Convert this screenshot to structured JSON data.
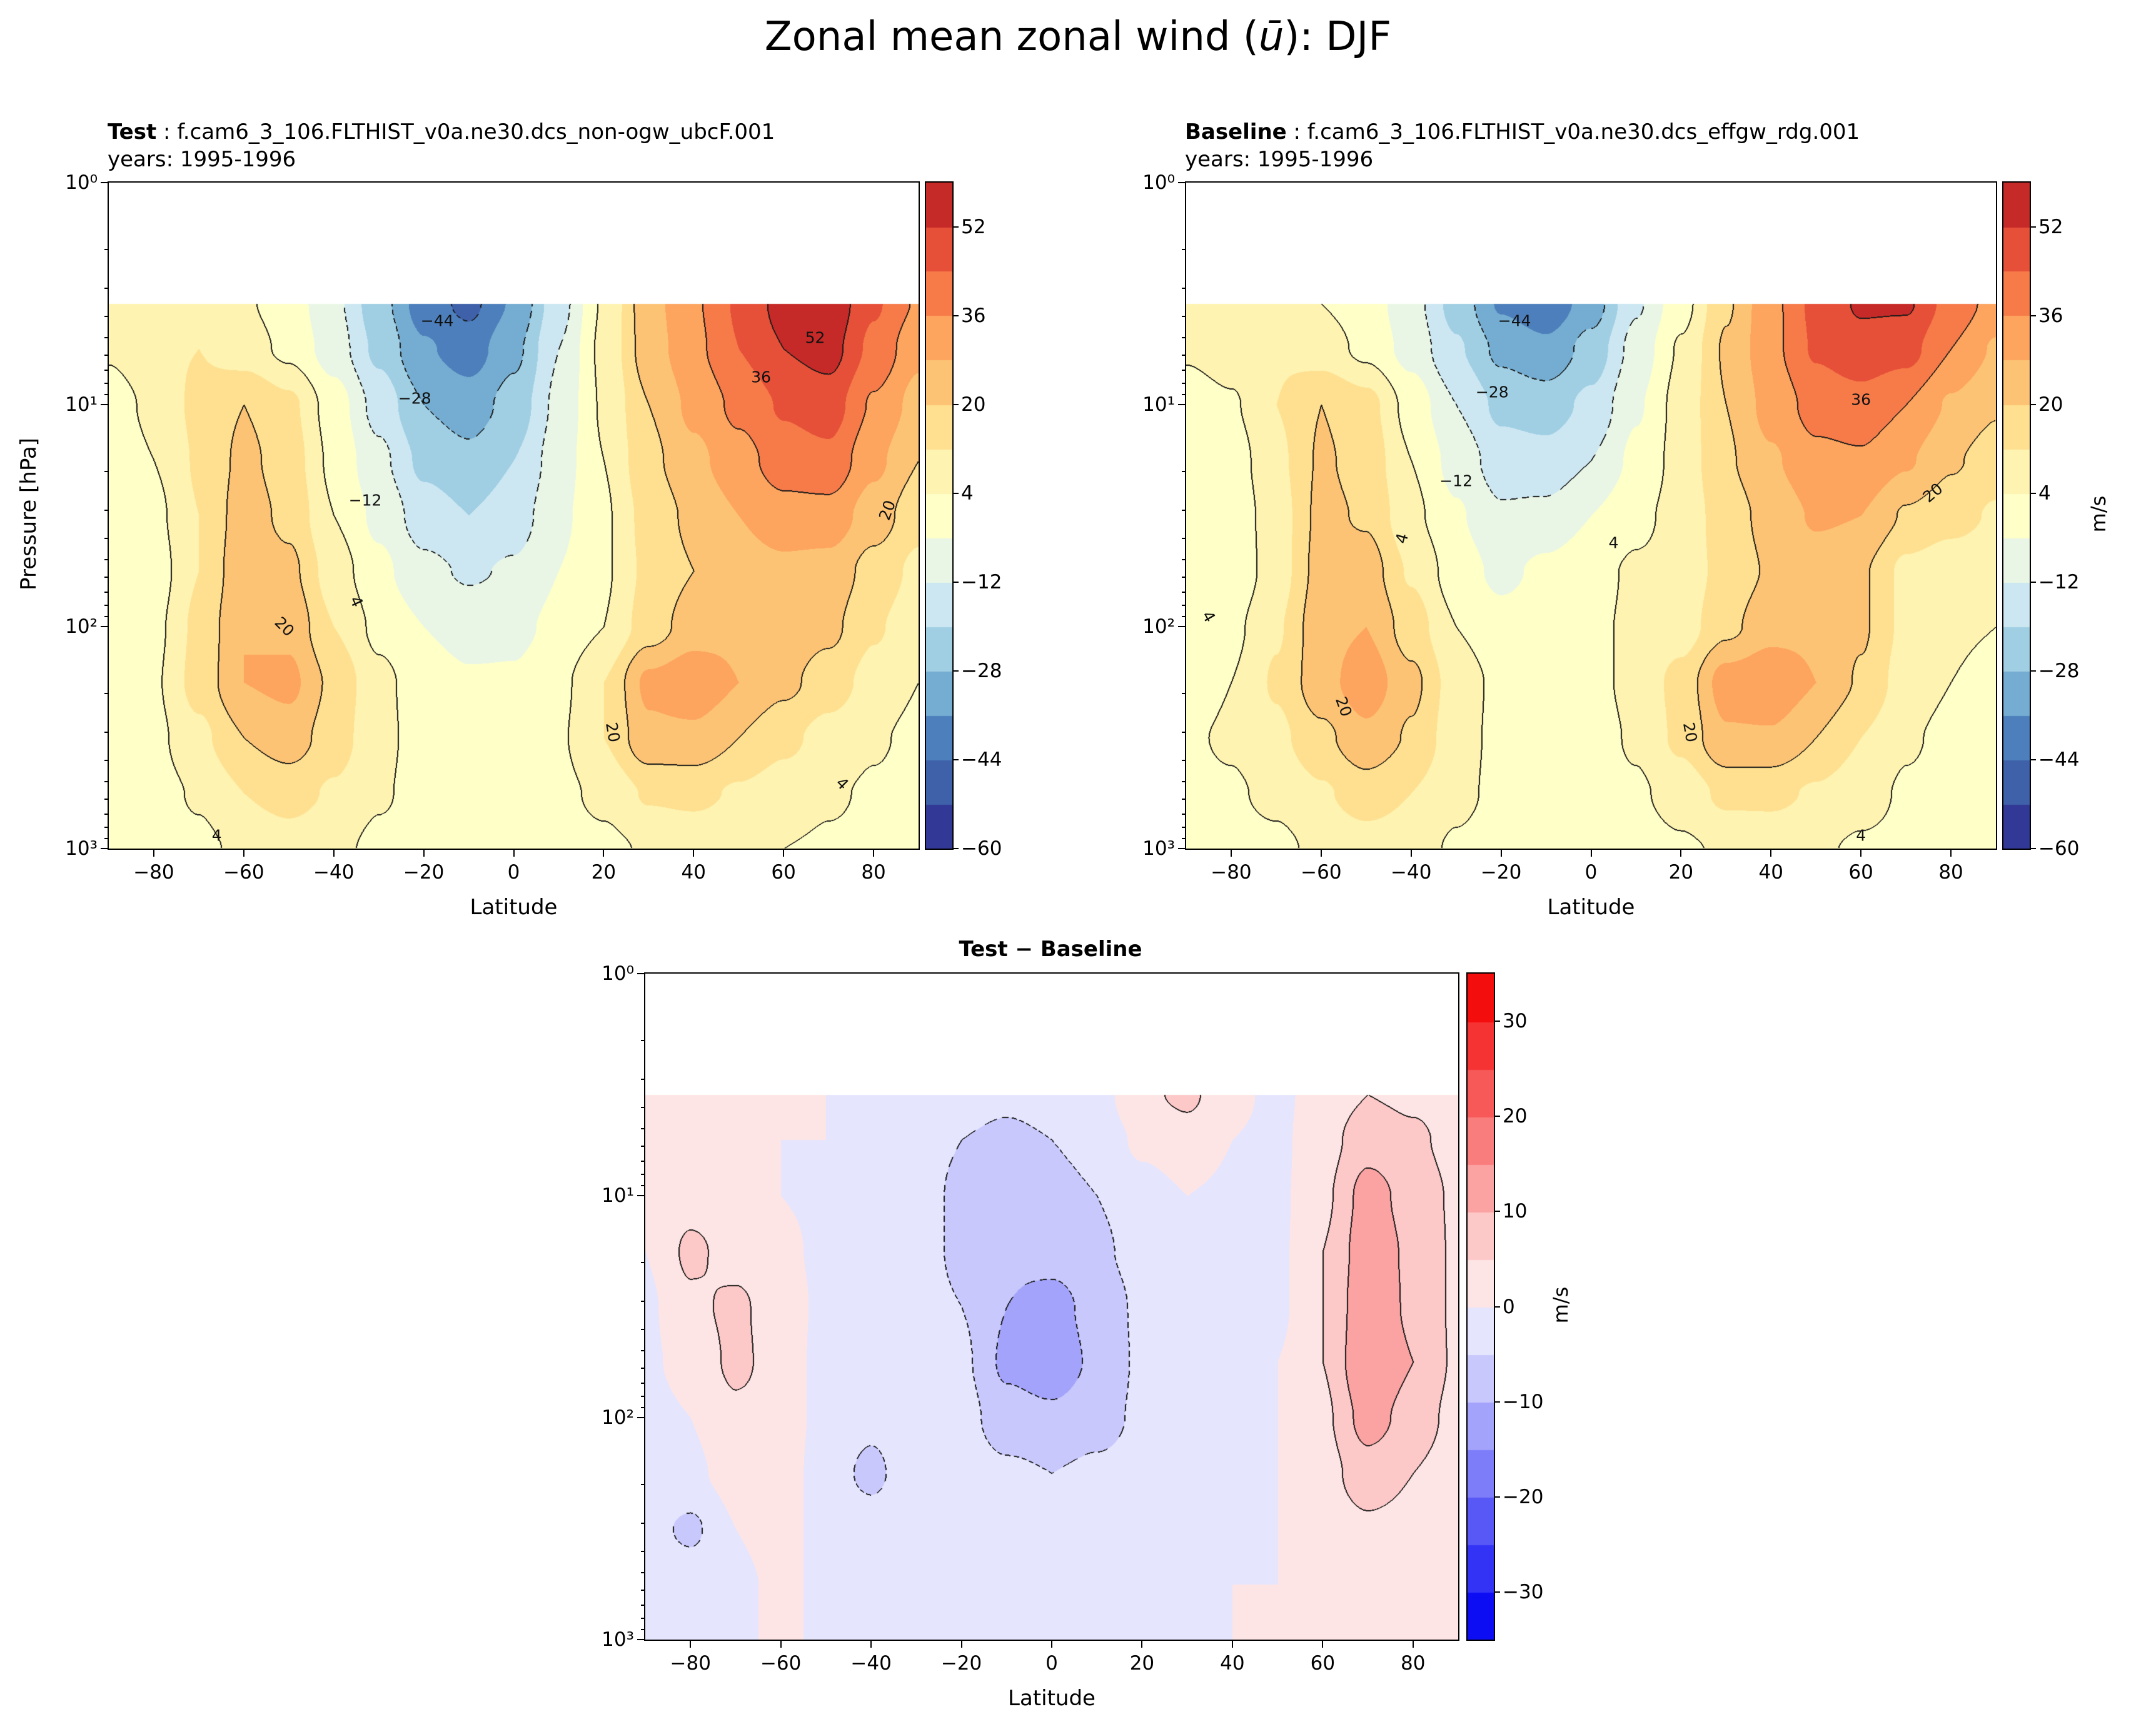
{
  "suptitle": {
    "pre": "Zonal mean zonal wind (",
    "math": "ū",
    "post": "): DJF"
  },
  "panels": {
    "test": {
      "label": "Test",
      "rest": " : f.cam6_3_106.FLTHIST_v0a.ne30.dcs_non-ogw_ubcF.001",
      "years": "years: 1995-1996"
    },
    "baseline": {
      "label": "Baseline",
      "rest": " : f.cam6_3_106.FLTHIST_v0a.ne30.dcs_effgw_rdg.001",
      "years": "years: 1995-1996"
    },
    "diff": {
      "title": "Test − Baseline"
    }
  },
  "axes": {
    "xlabel": "Latitude",
    "ylabel": "Pressure [hPa]",
    "units_label": "m/s",
    "xtick_values": [
      -80,
      -60,
      -40,
      -20,
      0,
      20,
      40,
      60,
      80
    ],
    "xtick_labels": [
      "−80",
      "−60",
      "−40",
      "−20",
      "0",
      "20",
      "40",
      "60",
      "80"
    ],
    "ytick_labels": [
      "10⁰",
      "10¹",
      "10²",
      "10³"
    ]
  },
  "colorbars": {
    "wind": {
      "min": -60,
      "max": 60,
      "step": 8,
      "tick_values": [
        52,
        36,
        20,
        4,
        -12,
        -28,
        -44,
        -60
      ],
      "tick_labels": [
        "52",
        "36",
        "20",
        "4",
        "−12",
        "−28",
        "−44",
        "−60"
      ],
      "palette": [
        "#323895",
        "#3f61aa",
        "#4d7fbc",
        "#74add1",
        "#a0cfe4",
        "#cce7f2",
        "#e9f6e5",
        "#ffffc8",
        "#fef3b0",
        "#fee090",
        "#fdc374",
        "#fda55f",
        "#f67b49",
        "#e65038",
        "#c62a28"
      ]
    },
    "diff": {
      "min": -35,
      "max": 35,
      "step": 5,
      "tick_values": [
        30,
        20,
        10,
        0,
        -10,
        -20,
        -30
      ],
      "tick_labels": [
        "30",
        "20",
        "10",
        "0",
        "−10",
        "−20",
        "−30"
      ],
      "palette": [
        "#0d0df4",
        "#3333f6",
        "#5858f7",
        "#7d7df9",
        "#a3a3fb",
        "#c8c8fd",
        "#e5e5fe",
        "#fee5e5",
        "#fdc8c8",
        "#fba3a3",
        "#f97d7d",
        "#f75858",
        "#f63333",
        "#f40d0d"
      ]
    }
  },
  "contour_lines": {
    "wind_levels": [
      -44,
      -28,
      -12,
      4,
      20,
      36,
      52
    ],
    "diff_levels": [
      -10,
      -5,
      5,
      10
    ]
  },
  "contour_labels": {
    "test": [
      {
        "lat": -17,
        "p": 4.2,
        "text": "−44",
        "rot": 0
      },
      {
        "lat": -22,
        "p": 9.4,
        "text": "−28",
        "rot": 0
      },
      {
        "lat": -33,
        "p": 27,
        "text": "−12",
        "rot": 0
      },
      {
        "lat": 67,
        "p": 5,
        "text": "52",
        "rot": 0
      },
      {
        "lat": 55,
        "p": 7.5,
        "text": "36",
        "rot": 0
      },
      {
        "lat": 83,
        "p": 30,
        "text": "20",
        "rot": -70
      },
      {
        "lat": -35,
        "p": 77,
        "text": "4",
        "rot": 65
      },
      {
        "lat": -51,
        "p": 100,
        "text": "20",
        "rot": 45
      },
      {
        "lat": 22,
        "p": 300,
        "text": "20",
        "rot": 80
      },
      {
        "lat": 73,
        "p": 510,
        "text": "4",
        "rot": 45
      },
      {
        "lat": -66,
        "p": 870,
        "text": "4",
        "rot": 0
      }
    ],
    "baseline": [
      {
        "lat": -17,
        "p": 4.2,
        "text": "−44",
        "rot": 0
      },
      {
        "lat": -22,
        "p": 8.8,
        "text": "−28",
        "rot": 0
      },
      {
        "lat": -30,
        "p": 22,
        "text": "−12",
        "rot": 0
      },
      {
        "lat": 60,
        "p": 9.5,
        "text": "36",
        "rot": 0
      },
      {
        "lat": 76,
        "p": 25,
        "text": "20",
        "rot": -40
      },
      {
        "lat": 5,
        "p": 42,
        "text": "4",
        "rot": 0
      },
      {
        "lat": -42,
        "p": 40,
        "text": "4",
        "rot": -75
      },
      {
        "lat": -85,
        "p": 90,
        "text": "4",
        "rot": 60
      },
      {
        "lat": -55,
        "p": 230,
        "text": "20",
        "rot": 70
      },
      {
        "lat": 22,
        "p": 300,
        "text": "20",
        "rot": 80
      },
      {
        "lat": 60,
        "p": 870,
        "text": "4",
        "rot": 0
      }
    ],
    "diff": []
  },
  "chart_data": [
    {
      "type": "heatmap",
      "name": "test",
      "title": "Test : f.cam6_3_106.FLTHIST_v0a.ne30.dcs_non-ogw_ubcF.001",
      "subtitle": "years: 1995-1996",
      "xlabel": "Latitude",
      "ylabel": "Pressure [hPa]",
      "units": "m/s",
      "color_range": [
        -60,
        60
      ],
      "contour_interval": 8,
      "x_lat": [
        -90,
        -80,
        -70,
        -60,
        -50,
        -40,
        -30,
        -20,
        -10,
        0,
        10,
        20,
        30,
        40,
        50,
        60,
        70,
        80,
        90
      ],
      "y_pressure_hPa": [
        3.5,
        5.6,
        10,
        17.8,
        31.6,
        56,
        100,
        178,
        316,
        562,
        1000
      ],
      "values": [
        [
          8,
          12,
          10,
          5,
          0,
          -10,
          -25,
          -40,
          -46,
          -35,
          -15,
          5,
          25,
          35,
          45,
          55,
          58,
          45,
          35
        ],
        [
          5,
          10,
          12,
          8,
          2,
          -8,
          -22,
          -35,
          -40,
          -30,
          -12,
          6,
          24,
          34,
          44,
          52,
          55,
          42,
          30
        ],
        [
          0,
          6,
          14,
          20,
          14,
          0,
          -15,
          -28,
          -32,
          -25,
          -10,
          5,
          20,
          30,
          38,
          45,
          48,
          35,
          25
        ],
        [
          -2,
          4,
          13,
          22,
          16,
          2,
          -10,
          -22,
          -26,
          -20,
          -8,
          4,
          18,
          26,
          33,
          40,
          42,
          30,
          20
        ],
        [
          -4,
          2,
          12,
          24,
          18,
          4,
          -6,
          -16,
          -20,
          -16,
          -6,
          3,
          15,
          22,
          28,
          33,
          33,
          24,
          15
        ],
        [
          -4,
          0,
          12,
          26,
          22,
          8,
          -2,
          -10,
          -13,
          -11,
          -4,
          3,
          14,
          20,
          24,
          26,
          25,
          17,
          10
        ],
        [
          -3,
          2,
          14,
          28,
          26,
          12,
          2,
          -4,
          -7,
          -6,
          -2,
          4,
          16,
          24,
          26,
          25,
          22,
          13,
          7
        ],
        [
          -2,
          3,
          15,
          28,
          30,
          18,
          6,
          0,
          -3,
          -3,
          2,
          12,
          30,
          34,
          28,
          22,
          16,
          9,
          4
        ],
        [
          0,
          2,
          10,
          20,
          24,
          16,
          6,
          1,
          -1,
          -1,
          3,
          12,
          26,
          26,
          20,
          14,
          9,
          5,
          2
        ],
        [
          0,
          1,
          5,
          12,
          15,
          11,
          5,
          1,
          0,
          0,
          2,
          6,
          13,
          14,
          11,
          8,
          5,
          3,
          1
        ],
        [
          -1,
          0,
          2,
          6,
          8,
          6,
          2,
          0,
          -1,
          -1,
          0,
          2,
          5,
          6,
          5,
          4,
          3,
          2,
          1
        ]
      ]
    },
    {
      "type": "heatmap",
      "name": "baseline",
      "title": "Baseline : f.cam6_3_106.FLTHIST_v0a.ne30.dcs_effgw_rdg.001",
      "subtitle": "years: 1995-1996",
      "xlabel": "Latitude",
      "ylabel": "Pressure [hPa]",
      "units": "m/s",
      "color_range": [
        -60,
        60
      ],
      "contour_interval": 8,
      "x_lat": [
        -90,
        -80,
        -70,
        -60,
        -50,
        -40,
        -30,
        -20,
        -10,
        0,
        10,
        20,
        30,
        40,
        50,
        60,
        70,
        80,
        90
      ],
      "y_pressure_hPa": [
        3.5,
        5.6,
        10,
        17.8,
        31.6,
        56,
        100,
        178,
        316,
        562,
        1000
      ],
      "values": [
        [
          8,
          11,
          8,
          4,
          0,
          -9,
          -23,
          -37,
          -42,
          -32,
          -13,
          1,
          19,
          34,
          46,
          53,
          53,
          41,
          33
        ],
        [
          5,
          8,
          11,
          8,
          2,
          -7,
          -19,
          -30,
          -34,
          -25,
          -9,
          5,
          21,
          34,
          45,
          49,
          47,
          36,
          27
        ],
        [
          0,
          3,
          12,
          20,
          15,
          1,
          -12,
          -22,
          -24,
          -18,
          -5,
          7,
          20,
          31,
          39,
          41,
          36,
          27,
          21
        ],
        [
          -2,
          0,
          10,
          21,
          17,
          4,
          -7,
          -16,
          -17,
          -12,
          -2,
          7,
          19,
          27,
          34,
          35,
          29,
          21,
          16
        ],
        [
          -3,
          -1,
          8,
          22,
          19,
          6,
          -3,
          -11,
          -10,
          -4,
          2,
          7,
          16,
          23,
          29,
          28,
          19,
          15,
          11
        ],
        [
          -3,
          -2,
          8,
          23,
          24,
          11,
          0,
          -6,
          -2,
          2,
          5,
          7,
          15,
          21,
          24,
          21,
          10,
          7,
          6
        ],
        [
          -1,
          2,
          11,
          25,
          28,
          16,
          4,
          -1,
          1,
          3,
          5,
          8,
          18,
          25,
          26,
          21,
          10,
          5,
          4
        ],
        [
          0,
          4,
          13,
          25,
          33,
          22,
          8,
          2,
          1,
          2,
          6,
          15,
          32,
          35,
          28,
          19,
          8,
          4,
          2
        ],
        [
          3,
          5,
          10,
          18,
          26,
          19,
          7,
          2,
          1,
          1,
          5,
          14,
          27,
          27,
          20,
          12,
          5,
          2,
          1
        ],
        [
          2,
          3,
          6,
          11,
          16,
          12,
          6,
          2,
          1,
          1,
          3,
          7,
          14,
          14,
          11,
          7,
          3,
          1,
          0
        ],
        [
          0,
          1,
          2,
          6,
          8,
          7,
          3,
          0,
          -1,
          0,
          1,
          3,
          5,
          6,
          5,
          3,
          2,
          1,
          1
        ]
      ]
    },
    {
      "type": "heatmap",
      "name": "test_minus_baseline",
      "title": "Test − Baseline",
      "xlabel": "Latitude",
      "ylabel": "Pressure [hPa]",
      "units": "m/s",
      "color_range": [
        -35,
        35
      ],
      "contour_interval": 5,
      "x_lat": [
        -90,
        -80,
        -70,
        -60,
        -50,
        -40,
        -30,
        -20,
        -10,
        0,
        10,
        20,
        30,
        40,
        50,
        60,
        70,
        80,
        90
      ],
      "y_pressure_hPa": [
        3.5,
        5.6,
        10,
        17.8,
        31.6,
        56,
        100,
        178,
        316,
        562,
        1000
      ],
      "values": [
        [
          0,
          1,
          2,
          1,
          0,
          -1,
          -2,
          -3,
          -4,
          -3,
          -2,
          4,
          6,
          1,
          -1,
          2,
          5,
          4,
          2
        ],
        [
          0,
          2,
          1,
          0,
          0,
          -1,
          -3,
          -5,
          -6,
          -5,
          -3,
          1,
          3,
          0,
          -1,
          3,
          8,
          6,
          3
        ],
        [
          0,
          3,
          2,
          0,
          -1,
          -1,
          -3,
          -6,
          -8,
          -7,
          -5,
          -2,
          0,
          -1,
          -1,
          4,
          12,
          8,
          4
        ],
        [
          0,
          6,
          3,
          1,
          -1,
          -2,
          -3,
          -6,
          -9,
          -8,
          -6,
          -3,
          -1,
          -1,
          -1,
          5,
          13,
          9,
          4
        ],
        [
          -1,
          4,
          6,
          2,
          -1,
          -2,
          -3,
          -5,
          -10,
          -12,
          -8,
          -4,
          -1,
          -1,
          -1,
          5,
          14,
          9,
          4
        ],
        [
          -1,
          2,
          6,
          3,
          -2,
          -3,
          -2,
          -4,
          -11,
          -13,
          -9,
          -4,
          -1,
          -1,
          0,
          5,
          15,
          10,
          4
        ],
        [
          -2,
          0,
          4,
          3,
          -2,
          -4,
          -2,
          -3,
          -8,
          -9,
          -7,
          -4,
          -2,
          -1,
          0,
          4,
          12,
          8,
          3
        ],
        [
          -2,
          -1,
          2,
          3,
          -3,
          -6,
          -2,
          -2,
          -4,
          -5,
          -4,
          -3,
          -2,
          -1,
          0,
          3,
          8,
          5,
          2
        ],
        [
          -3,
          -6,
          0,
          2,
          -2,
          -3,
          -1,
          -1,
          -2,
          -2,
          -2,
          -2,
          -1,
          -1,
          0,
          2,
          4,
          3,
          1
        ],
        [
          -2,
          -2,
          -1,
          1,
          -1,
          -1,
          -1,
          -1,
          -1,
          -1,
          -1,
          -1,
          -1,
          0,
          0,
          1,
          2,
          2,
          1
        ],
        [
          -1,
          -1,
          0,
          0,
          0,
          -1,
          -1,
          0,
          0,
          -1,
          -1,
          -1,
          0,
          0,
          0,
          1,
          1,
          1,
          0
        ]
      ]
    }
  ]
}
